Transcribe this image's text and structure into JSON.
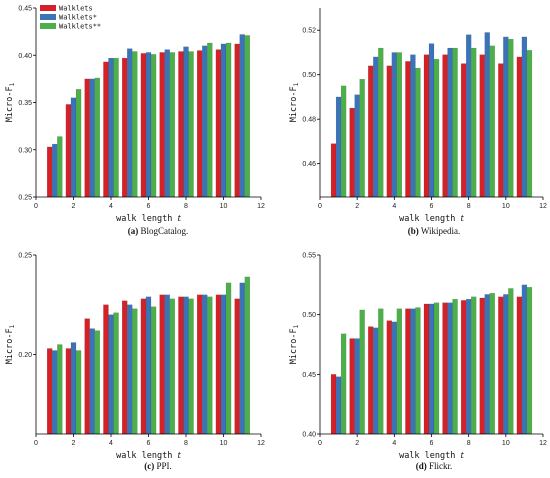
{
  "legend": [
    {
      "name": "Walklets",
      "color": "#d42027"
    },
    {
      "name": "Walklets*",
      "color": "#3a73b8"
    },
    {
      "name": "Walklets**",
      "color": "#4daf4a"
    }
  ],
  "series_colors": [
    "#d42027",
    "#3a73b8",
    "#4daf4a"
  ],
  "chart_data": [
    {
      "type": "bar",
      "caption_letter": "(a)",
      "caption_text": " BlogCatalog.",
      "xlabel": "walk length",
      "xlabel_var": "t",
      "ylabel": "Micro-F",
      "ylabel_sub": "1",
      "xlim": [
        0,
        12
      ],
      "xticks": [
        0,
        2,
        4,
        6,
        8,
        10,
        12
      ],
      "ylim": [
        0.25,
        0.45
      ],
      "yticks": [
        0.25,
        0.3,
        0.35,
        0.4,
        0.45
      ],
      "ytick_labels": [
        "0.25",
        "0.30",
        "0.35",
        "0.40",
        "0.45"
      ],
      "x": [
        1,
        2,
        3,
        4,
        5,
        6,
        7,
        8,
        9,
        10,
        11
      ],
      "series": [
        {
          "values": [
            0.303,
            0.348,
            0.375,
            0.393,
            0.397,
            0.402,
            0.403,
            0.404,
            0.405,
            0.406,
            0.412
          ]
        },
        {
          "values": [
            0.306,
            0.355,
            0.375,
            0.397,
            0.407,
            0.403,
            0.406,
            0.409,
            0.41,
            0.412,
            0.422
          ]
        },
        {
          "values": [
            0.314,
            0.364,
            0.376,
            0.397,
            0.404,
            0.401,
            0.403,
            0.404,
            0.413,
            0.413,
            0.421
          ]
        }
      ]
    },
    {
      "type": "bar",
      "caption_letter": "(b)",
      "caption_text": " Wikipedia.",
      "xlabel": "walk length",
      "xlabel_var": "t",
      "ylabel": "Micro-F",
      "ylabel_sub": "1",
      "xlim": [
        0,
        12
      ],
      "xticks": [
        0,
        2,
        4,
        6,
        8,
        10,
        12
      ],
      "ylim": [
        0.445,
        0.53
      ],
      "yticks": [
        0.46,
        0.48,
        0.5,
        0.52
      ],
      "ytick_labels": [
        "0.46",
        "0.48",
        "0.50",
        "0.52"
      ],
      "x": [
        1,
        2,
        3,
        4,
        5,
        6,
        7,
        8,
        9,
        10,
        11
      ],
      "series": [
        {
          "values": [
            0.469,
            0.485,
            0.504,
            0.504,
            0.506,
            0.509,
            0.509,
            0.505,
            0.509,
            0.505,
            0.508
          ]
        },
        {
          "values": [
            0.49,
            0.491,
            0.508,
            0.51,
            0.509,
            0.514,
            0.512,
            0.518,
            0.519,
            0.517,
            0.517
          ]
        },
        {
          "values": [
            0.495,
            0.498,
            0.512,
            0.51,
            0.503,
            0.507,
            0.512,
            0.512,
            0.513,
            0.516,
            0.511
          ]
        }
      ]
    },
    {
      "type": "bar",
      "caption_letter": "(c)",
      "caption_text": " PPI.",
      "xlabel": "walk length",
      "xlabel_var": "t",
      "ylabel": "Micro-F",
      "ylabel_sub": "1",
      "xlim": [
        0,
        12
      ],
      "xticks": [
        0,
        2,
        4,
        6,
        8,
        10,
        12
      ],
      "ylim": [
        0.16,
        0.25
      ],
      "yticks": [
        0.2,
        0.25
      ],
      "ytick_labels": [
        "0.20",
        "0.25"
      ],
      "x": [
        1,
        2,
        3,
        4,
        5,
        6,
        7,
        8,
        9,
        10,
        11
      ],
      "series": [
        {
          "values": [
            0.203,
            0.203,
            0.218,
            0.225,
            0.227,
            0.228,
            0.23,
            0.229,
            0.23,
            0.23,
            0.228
          ]
        },
        {
          "values": [
            0.202,
            0.206,
            0.213,
            0.22,
            0.225,
            0.229,
            0.23,
            0.229,
            0.23,
            0.23,
            0.236
          ]
        },
        {
          "values": [
            0.205,
            0.202,
            0.212,
            0.221,
            0.223,
            0.224,
            0.228,
            0.228,
            0.229,
            0.236,
            0.239
          ]
        }
      ]
    },
    {
      "type": "bar",
      "caption_letter": "(d)",
      "caption_text": " Flickr.",
      "xlabel": "walk length",
      "xlabel_var": "t",
      "ylabel": "Micro-F",
      "ylabel_sub": "1",
      "xlim": [
        0,
        12
      ],
      "xticks": [
        0,
        2,
        4,
        6,
        8,
        10,
        12
      ],
      "ylim": [
        0.4,
        0.55
      ],
      "yticks": [
        0.4,
        0.45,
        0.5,
        0.55
      ],
      "ytick_labels": [
        "0.40",
        "0.45",
        "0.50",
        "0.55"
      ],
      "x": [
        1,
        2,
        3,
        4,
        5,
        6,
        7,
        8,
        9,
        10,
        11
      ],
      "series": [
        {
          "values": [
            0.45,
            0.48,
            0.49,
            0.495,
            0.505,
            0.509,
            0.51,
            0.512,
            0.514,
            0.515,
            0.515
          ]
        },
        {
          "values": [
            0.448,
            0.48,
            0.489,
            0.494,
            0.505,
            0.509,
            0.51,
            0.513,
            0.517,
            0.517,
            0.525
          ]
        },
        {
          "values": [
            0.484,
            0.504,
            0.505,
            0.505,
            0.506,
            0.51,
            0.513,
            0.515,
            0.518,
            0.522,
            0.523
          ]
        }
      ]
    }
  ]
}
